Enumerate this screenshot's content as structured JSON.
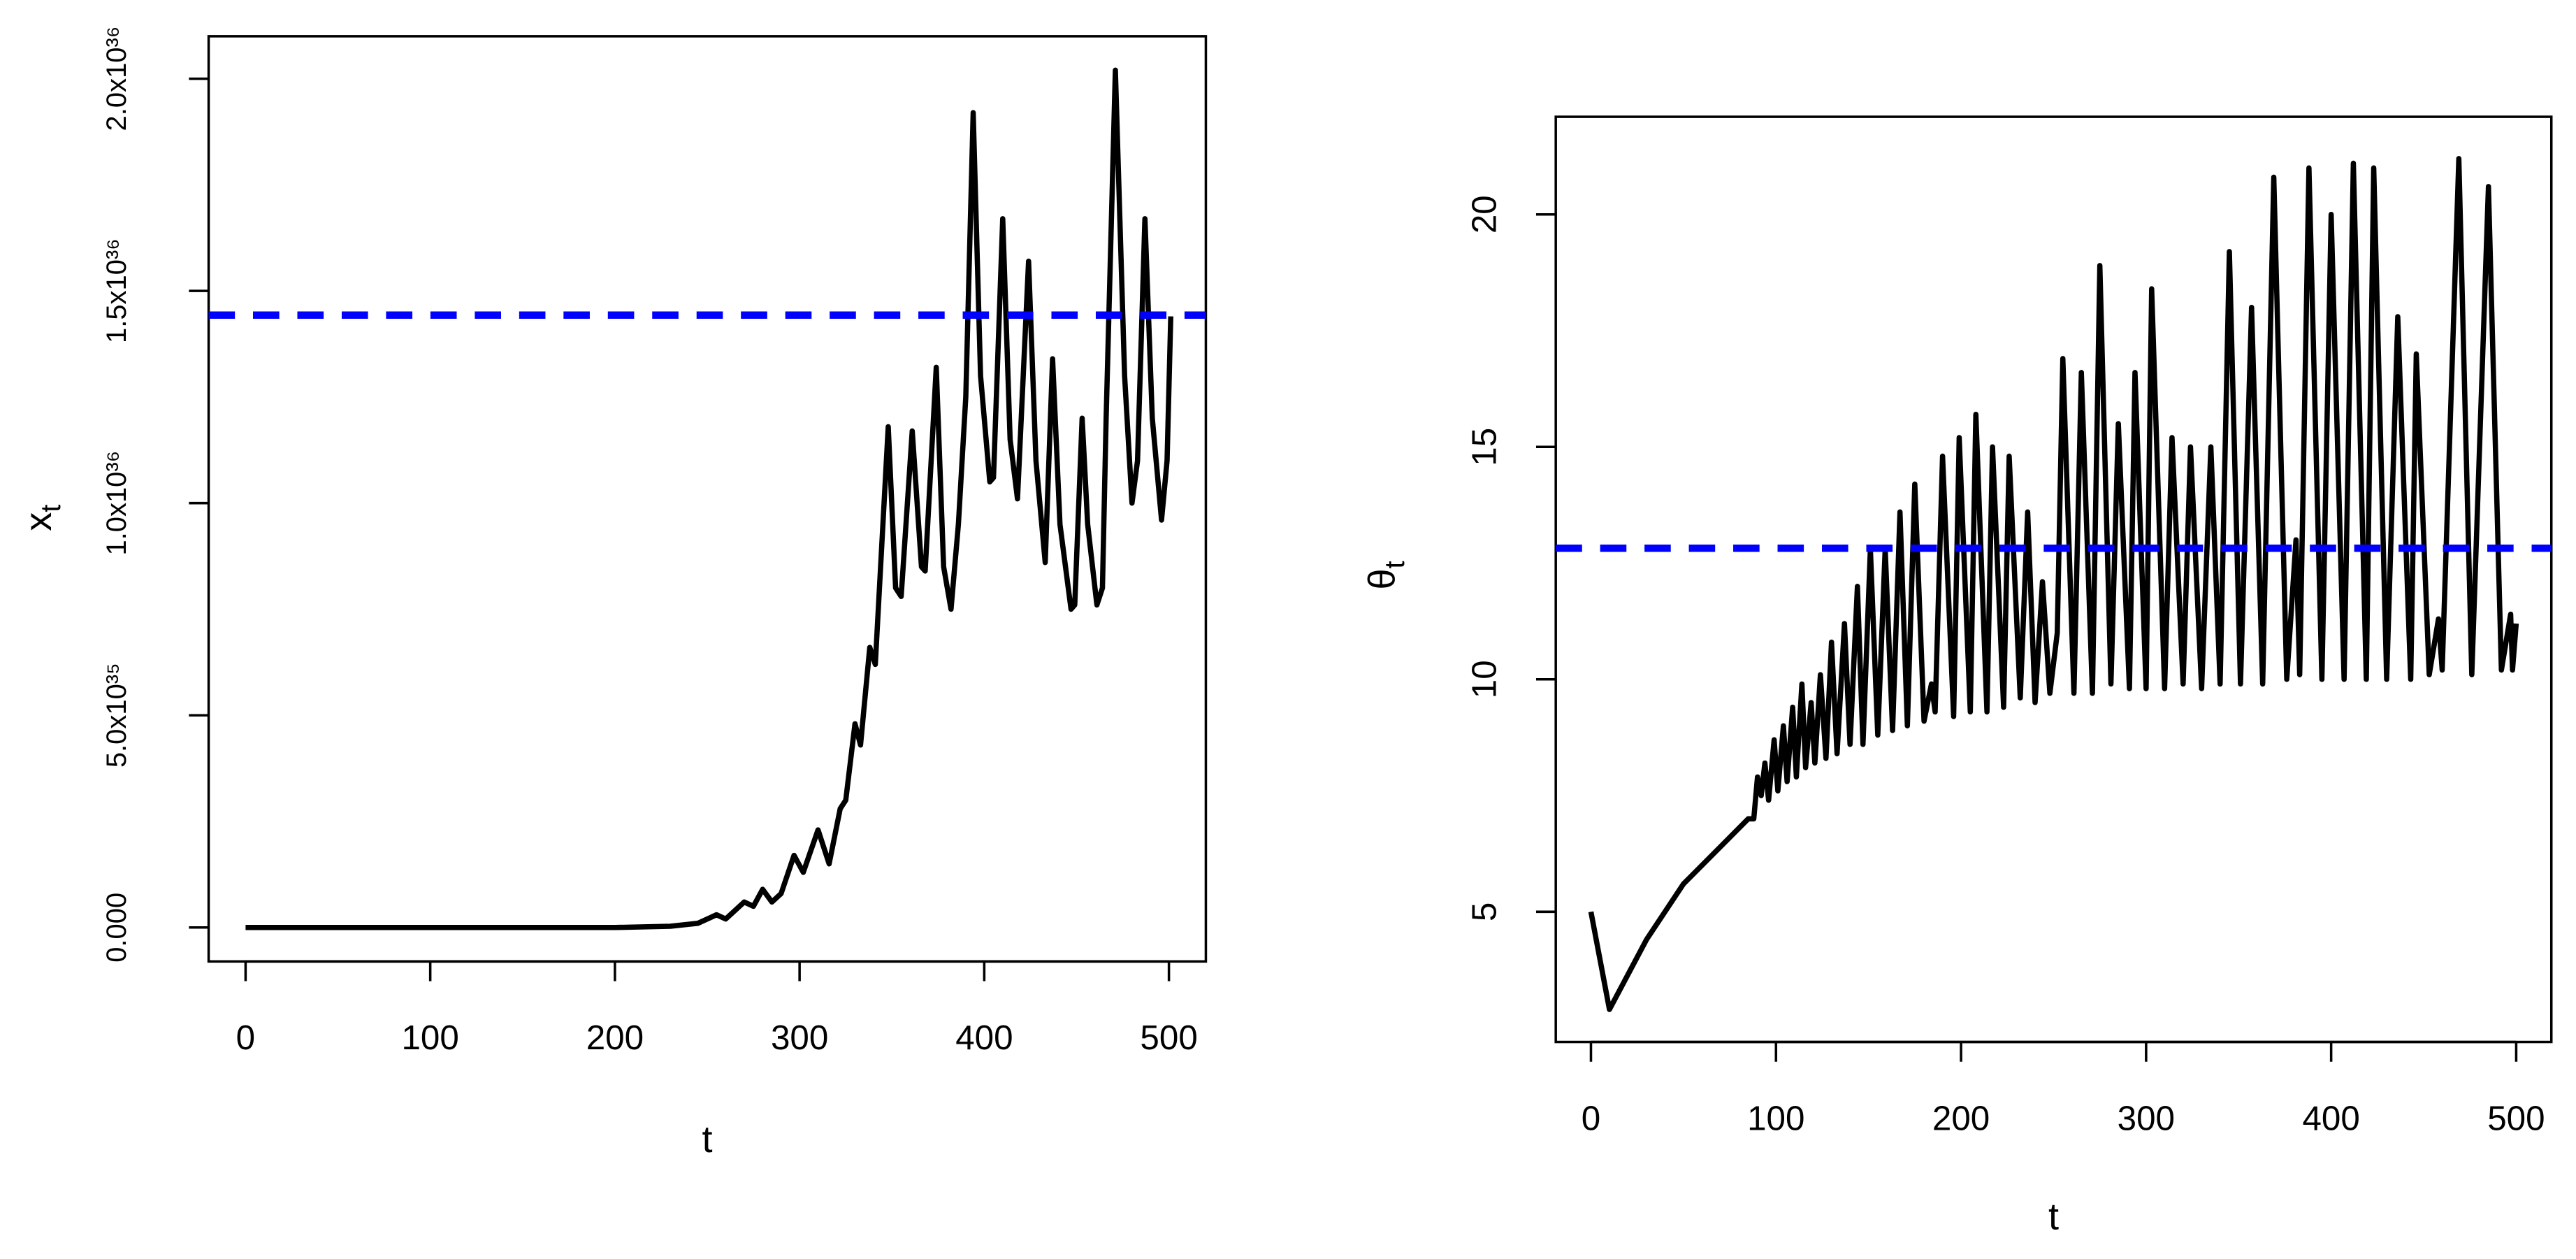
{
  "chart_data": [
    {
      "type": "line",
      "x_label": "t",
      "y_label": {
        "main": "x",
        "sub": "t"
      },
      "xlim": [
        -20,
        520
      ],
      "ylim": [
        -8e+34,
        2.1e+36
      ],
      "xticks": [
        0,
        100,
        200,
        300,
        400,
        500
      ],
      "yticks": [
        {
          "value": 0,
          "label": "0.000"
        },
        {
          "value": 5e+35,
          "label": "5.0x10³⁵"
        },
        {
          "value": 1e+36,
          "label": "1.0x10³⁶"
        },
        {
          "value": 1.5e+36,
          "label": "1.5x10³⁶"
        },
        {
          "value": 2e+36,
          "label": "2.0x10³⁶"
        }
      ],
      "reference_line": {
        "value": 1.443e+36,
        "color": "#0000ff"
      },
      "series": [
        {
          "color": "#000000",
          "x": [
            0,
            200,
            230,
            245,
            255,
            260,
            270,
            275,
            280,
            285,
            290,
            297,
            302,
            310,
            316,
            322,
            325,
            330,
            333,
            338,
            341,
            348,
            352,
            355,
            361,
            366,
            368,
            374,
            378,
            382,
            386,
            390,
            394,
            398,
            403,
            405,
            410,
            414,
            418,
            424,
            428,
            433,
            437,
            441,
            447,
            449,
            453,
            456,
            461,
            464,
            466,
            471,
            476,
            480,
            483,
            487,
            491,
            496,
            499,
            501
          ],
          "values": [
            0,
            0,
            3e+33,
            1e+34,
            3e+34,
            2e+34,
            6e+34,
            5e+34,
            9e+34,
            6e+34,
            8e+34,
            1.7e+35,
            1.3e+35,
            2.3e+35,
            1.5e+35,
            2.8e+35,
            3e+35,
            4.8e+35,
            4.3e+35,
            6.6e+35,
            6.2e+35,
            1.18e+36,
            8e+35,
            7.8e+35,
            1.17e+36,
            8.5e+35,
            8.4e+35,
            1.32e+36,
            8.5e+35,
            7.5e+35,
            9.5e+35,
            1.25e+36,
            1.92e+36,
            1.3e+36,
            1.05e+36,
            1.06e+36,
            1.67e+36,
            1.15e+36,
            1.01e+36,
            1.57e+36,
            1.1e+36,
            8.6e+35,
            1.34e+36,
            9.5e+35,
            7.5e+35,
            7.6e+35,
            1.2e+36,
            9.5e+35,
            7.6e+35,
            8e+35,
            1.2e+36,
            2.02e+36,
            1.3e+36,
            1e+36,
            1.1e+36,
            1.67e+36,
            1.2e+36,
            9.6e+35,
            1.1e+36,
            1.44e+36
          ]
        }
      ]
    },
    {
      "type": "line",
      "x_label": "t",
      "y_label": {
        "main": "θ",
        "sub": "t"
      },
      "xlim": [
        -19,
        519
      ],
      "ylim": [
        2.2,
        22.1
      ],
      "xticks": [
        0,
        100,
        200,
        300,
        400,
        500
      ],
      "yticks": [
        5,
        10,
        15,
        20
      ],
      "reference_line": {
        "value": 12.82,
        "color": "#0000ff"
      },
      "series": [
        {
          "color": "#000000",
          "x": [
            0,
            10,
            30,
            50,
            70,
            85,
            88,
            90,
            92,
            94,
            96,
            99,
            101,
            104,
            106,
            109,
            111,
            114,
            116,
            119,
            121,
            124,
            127,
            130,
            133,
            137,
            140,
            144,
            147,
            151,
            155,
            159,
            163,
            167,
            171,
            175,
            180,
            184,
            186,
            190,
            196,
            199,
            205,
            208,
            214,
            217,
            223,
            226,
            232,
            236,
            240,
            244,
            248,
            252,
            255,
            261,
            265,
            271,
            275,
            281,
            285,
            291,
            294,
            300,
            303,
            310,
            314,
            320,
            324,
            330,
            335,
            340,
            345,
            351,
            357,
            363,
            369,
            376,
            381,
            383,
            388,
            395,
            400,
            407,
            412,
            419,
            423,
            430,
            436,
            443,
            446,
            453,
            458,
            460,
            469,
            476,
            485,
            492,
            497,
            498,
            500
          ],
          "values": [
            5,
            2.9,
            4.4,
            5.6,
            6.4,
            7.0,
            7.0,
            7.9,
            7.5,
            8.2,
            7.4,
            8.7,
            7.6,
            9.0,
            7.8,
            9.4,
            7.9,
            9.9,
            8.1,
            9.5,
            8.2,
            10.1,
            8.3,
            10.8,
            8.4,
            11.2,
            8.6,
            12.0,
            8.6,
            12.8,
            8.8,
            12.8,
            8.9,
            13.6,
            9.0,
            14.2,
            9.1,
            9.9,
            9.3,
            14.8,
            9.2,
            15.2,
            9.3,
            15.7,
            9.3,
            15.0,
            9.4,
            14.8,
            9.6,
            13.6,
            9.5,
            12.1,
            9.7,
            11.0,
            16.9,
            9.7,
            16.6,
            9.7,
            18.9,
            9.9,
            15.5,
            9.8,
            16.6,
            9.8,
            18.4,
            9.8,
            15.2,
            9.9,
            15.0,
            9.8,
            15.0,
            9.9,
            19.2,
            9.9,
            18.0,
            9.9,
            20.8,
            10.0,
            13.0,
            10.1,
            21.0,
            10.0,
            20.0,
            10.0,
            21.1,
            10.0,
            21.0,
            10.0,
            17.8,
            10.0,
            17.0,
            10.1,
            11.3,
            10.2,
            21.2,
            10.1,
            20.6,
            10.2,
            11.4,
            10.2,
            11.2
          ]
        }
      ]
    }
  ]
}
